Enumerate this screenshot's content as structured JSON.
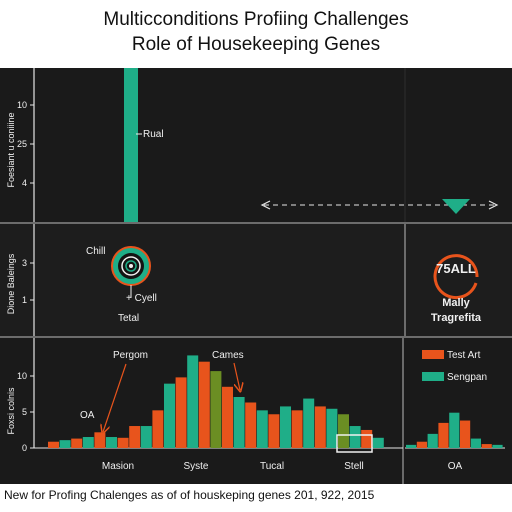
{
  "title_line1": "Multicconditions Profiing Challenges",
  "title_line2": "Role of Housekeeping Genes",
  "footer_note": "New for Profing Chalenges as of of houskeping genes 201, 922, 2015",
  "colors": {
    "background": "#1c1c1c",
    "panel": "#222222",
    "teal": "#1fae88",
    "orange": "#e8541c",
    "olive": "#6b8e23",
    "text": "#f0f0f0",
    "title_text": "#111111"
  },
  "panel_top": {
    "ylabel": "Foesiant u coniiine",
    "yticks": [
      "10",
      "25",
      "4"
    ],
    "marker_label": "Rual",
    "arrow": {
      "direction": "both",
      "marker_icon": "triangle-down-icon"
    }
  },
  "panel_mid": {
    "ylabel": "Dione Baleings",
    "yticks": [
      "3",
      "1"
    ],
    "ring_label": "Chill",
    "cross_label": "+ Cyell",
    "total_label": "Tetal",
    "badge_value": "75ALL",
    "badge_caption_line1": "Mally",
    "badge_caption_line2": "Tragrefita"
  },
  "chart_data": {
    "type": "bar",
    "ylabel": "Foxsi colnis",
    "ylim": [
      0,
      13
    ],
    "yticks": [
      "10",
      "5",
      "0"
    ],
    "categories": [
      "Masion",
      "Syste",
      "Tucal",
      "Stell"
    ],
    "annotations": [
      "Pergom",
      "Cames",
      "OA"
    ],
    "legend": {
      "placement": "right",
      "entries": [
        "Test Art",
        "Sengpan"
      ]
    },
    "highlight_label": "Stell",
    "bars": [
      {
        "v": 0.8,
        "c": "orange"
      },
      {
        "v": 1.0,
        "c": "teal"
      },
      {
        "v": 1.2,
        "c": "orange"
      },
      {
        "v": 1.4,
        "c": "teal"
      },
      {
        "v": 2.0,
        "c": "orange"
      },
      {
        "v": 1.4,
        "c": "teal"
      },
      {
        "v": 1.3,
        "c": "orange"
      },
      {
        "v": 2.8,
        "c": "orange"
      },
      {
        "v": 2.8,
        "c": "teal"
      },
      {
        "v": 4.8,
        "c": "orange"
      },
      {
        "v": 8.2,
        "c": "teal"
      },
      {
        "v": 9.0,
        "c": "orange"
      },
      {
        "v": 11.8,
        "c": "teal"
      },
      {
        "v": 11.0,
        "c": "orange"
      },
      {
        "v": 9.8,
        "c": "olive"
      },
      {
        "v": 7.8,
        "c": "orange"
      },
      {
        "v": 6.5,
        "c": "teal"
      },
      {
        "v": 5.8,
        "c": "orange"
      },
      {
        "v": 4.8,
        "c": "teal"
      },
      {
        "v": 4.3,
        "c": "orange"
      },
      {
        "v": 5.3,
        "c": "teal"
      },
      {
        "v": 4.8,
        "c": "orange"
      },
      {
        "v": 6.3,
        "c": "teal"
      },
      {
        "v": 5.3,
        "c": "orange"
      },
      {
        "v": 5.0,
        "c": "teal"
      },
      {
        "v": 4.3,
        "c": "olive"
      },
      {
        "v": 2.8,
        "c": "teal"
      },
      {
        "v": 2.3,
        "c": "orange"
      },
      {
        "v": 1.3,
        "c": "teal"
      }
    ],
    "inset_label": "OA",
    "inset_bars": [
      {
        "v": 0.4,
        "c": "teal"
      },
      {
        "v": 0.8,
        "c": "orange"
      },
      {
        "v": 1.8,
        "c": "teal"
      },
      {
        "v": 3.2,
        "c": "orange"
      },
      {
        "v": 4.5,
        "c": "teal"
      },
      {
        "v": 3.5,
        "c": "orange"
      },
      {
        "v": 1.2,
        "c": "teal"
      },
      {
        "v": 0.5,
        "c": "orange"
      },
      {
        "v": 0.4,
        "c": "teal"
      }
    ]
  }
}
